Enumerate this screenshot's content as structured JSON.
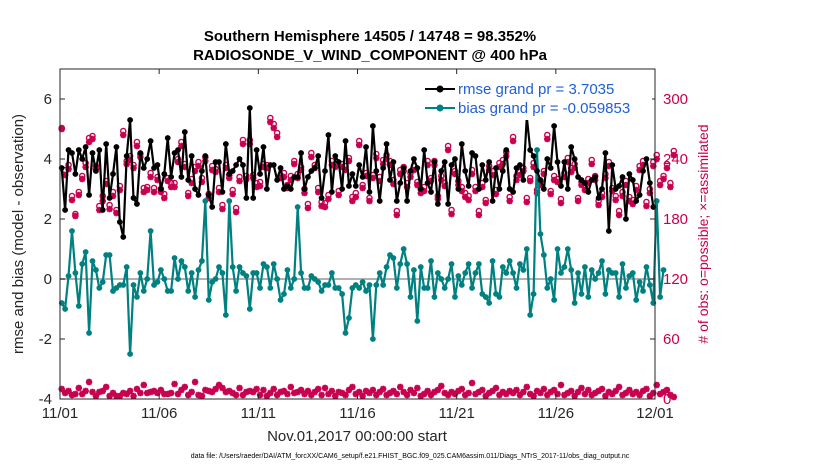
{
  "chart_data": {
    "type": "line",
    "title_line1": "Southern Hemisphere 14505 / 14748 = 98.352%",
    "title_line2": "RADIOSONDE_V_WIND_COMPONENT @ 400 hPa",
    "xlabel": "Nov.01,2017 00:00:00 start",
    "ylabel": "rmse and bias (model - observation)",
    "ylabel_right": "# of obs: o=possible; ×=assimilated",
    "x_ticks": [
      "11/01",
      "11/06",
      "11/11",
      "11/16",
      "11/21",
      "11/26",
      "12/01"
    ],
    "x_range_days": [
      0,
      30
    ],
    "ylim": [
      -4,
      7
    ],
    "y_ticks": [
      -4,
      -2,
      0,
      2,
      4,
      6
    ],
    "ylim_right": [
      0,
      330
    ],
    "y_ticks_right": [
      0,
      60,
      120,
      180,
      240,
      300
    ],
    "footer": "data file: /Users/raeder/DAI/ATM_forcXX/CAM6_setup/f.e21.FHIST_BGC.f09_025.CAM6assim.011/Diags_NTrS_2017-11/obs_diag_output.nc",
    "colors": {
      "rmse": "#000000",
      "bias": "#008080",
      "obs": "#c8004f",
      "legend_text": "#1f5fd6"
    },
    "series": [
      {
        "name": "rmse",
        "legend": "rmse grand pr = 3.7035",
        "values": [
          3.7,
          2.3,
          4.3,
          4.2,
          3.5,
          4.3,
          4.0,
          4.4,
          2.8,
          4.2,
          3.6,
          4.3,
          2.3,
          4.5,
          2.7,
          3.5,
          4.4,
          1.9,
          1.4,
          4.1,
          5.3,
          2.7,
          2.5,
          4.2,
          3.7,
          4.0,
          4.6,
          3.7,
          3.8,
          3.0,
          3.5,
          4.7,
          3.4,
          4.2,
          4.3,
          3.4,
          4.9,
          3.3,
          4.1,
          3.0,
          2.8,
          3.6,
          4.1,
          2.8,
          2.4,
          3.9,
          3.9,
          2.9,
          4.5,
          3.5,
          3.6,
          3.8,
          4.0,
          3.8,
          2.7,
          5.7,
          2.7,
          4.3,
          3.5,
          4.4,
          3.0,
          3.8,
          3.8,
          3.3,
          3.7,
          3.0,
          3.1,
          3.0,
          3.4,
          3.4,
          4.2,
          3.0,
          3.4,
          3.6,
          3.7,
          4.1,
          2.7,
          3.6,
          4.8,
          2.9,
          4.1,
          3.9,
          3.0,
          4.6,
          3.1,
          3.5,
          3.1,
          3.8,
          3.4,
          4.4,
          2.9,
          5.1,
          3.6,
          2.6,
          3.7,
          4.5,
          3.3,
          3.9,
          2.6,
          3.2,
          3.7,
          2.6,
          3.6,
          4.0,
          3.7,
          3.0,
          4.3,
          3.2,
          2.9,
          3.9,
          2.5,
          3.6,
          3.9,
          2.5,
          3.8,
          4.0,
          3.0,
          4.5,
          3.6,
          3.1,
          4.2,
          4.1,
          3.0,
          3.8,
          3.3,
          3.9,
          2.6,
          3.7,
          3.0,
          3.6,
          4.3,
          3.0,
          2.9,
          3.7,
          3.8,
          3.3,
          5.4,
          4.3,
          4.1,
          3.6,
          3.3,
          3.0,
          4.0,
          3.7,
          5.1,
          3.9,
          3.1,
          3.9,
          3.0,
          4.4,
          4.0,
          3.4,
          3.3,
          3.2,
          2.9,
          3.3,
          3.4,
          2.7,
          3.0,
          4.2,
          1.6,
          3.8,
          3.0,
          3.1,
          3.4,
          2.0,
          3.5,
          3.3,
          2.6,
          2.8,
          3.6,
          4.0,
          3.2,
          2.4
        ]
      },
      {
        "name": "bias",
        "legend": "bias grand pr = -0.059853",
        "values": [
          -0.8,
          -1.0,
          0.1,
          1.6,
          0.2,
          -0.9,
          0.5,
          0.9,
          -1.8,
          0.6,
          0.3,
          -0.3,
          -0.1,
          0.8,
          0.8,
          -0.4,
          -0.3,
          -0.2,
          -0.2,
          0.4,
          -2.5,
          -0.2,
          -0.6,
          0.2,
          -0.4,
          0.0,
          1.6,
          -0.2,
          -0.1,
          0.3,
          0.0,
          -0.4,
          -0.4,
          0.7,
          0.0,
          0.6,
          0.4,
          -0.4,
          0.2,
          -0.6,
          0.3,
          0.6,
          2.6,
          -0.7,
          -0.1,
          0.0,
          0.4,
          0.2,
          -1.2,
          2.6,
          0.4,
          -0.4,
          0.4,
          0.2,
          0.1,
          -1.0,
          0.2,
          0.2,
          -0.3,
          0.5,
          0.4,
          -0.3,
          0.5,
          0.0,
          -0.7,
          -0.5,
          0.3,
          -0.3,
          0.0,
          2.4,
          0.2,
          -0.3,
          -0.3,
          0.1,
          0.0,
          -0.1,
          -0.4,
          -0.2,
          -0.2,
          0.2,
          -0.3,
          -0.3,
          -0.5,
          -1.8,
          -1.3,
          -0.3,
          -0.2,
          -0.3,
          -0.1,
          -0.4,
          -0.2,
          -2.0,
          -0.2,
          0.2,
          -0.2,
          0.4,
          0.8,
          0.7,
          -0.3,
          0.5,
          1.0,
          0.5,
          -0.6,
          0.3,
          -1.4,
          0.4,
          -0.3,
          -0.3,
          0.6,
          -0.6,
          0.2,
          0.0,
          -0.3,
          0.0,
          0.5,
          -0.6,
          0.1,
          -0.2,
          0.2,
          0.5,
          -0.3,
          0.2,
          0.5,
          -0.5,
          -0.6,
          -0.8,
          0.6,
          -0.5,
          -0.6,
          0.4,
          0.2,
          0.6,
          0.2,
          -0.3,
          0.5,
          0.3,
          1.0,
          -1.2,
          -0.5,
          4.3,
          1.5,
          0.8,
          -0.3,
          0.0,
          -0.7,
          1.0,
          0.2,
          0.4,
          1.0,
          0.3,
          -0.8,
          0.2,
          -0.5,
          0.4,
          -0.6,
          0.3,
          0.0,
          0.2,
          0.6,
          -0.5,
          0.3,
          0.2,
          0.2,
          -0.6,
          0.5,
          -0.3,
          0.1,
          0.2,
          -0.7,
          -0.1,
          -0.4,
          0.4,
          -0.2,
          -0.8,
          2.6,
          -0.6,
          0.3
        ]
      },
      {
        "name": "obs_possible",
        "values": [
          271,
          229,
          234,
          203,
          185,
          207,
          223,
          236,
          261,
          263,
          233,
          193,
          203,
          218,
          194,
          207,
          189,
          213,
          268,
          238,
          243,
          234,
          257,
          245,
          211,
          212,
          226,
          211,
          222,
          210,
          205,
          221,
          216,
          216,
          240,
          257,
          235,
          206,
          220,
          232,
          237,
          221,
          242,
          205,
          233,
          230,
          211,
          194,
          234,
          224,
          209,
          191,
          222,
          259,
          223,
          259,
          224,
          216,
          217,
          235,
          234,
          281,
          275,
          266,
          224,
          226,
          214,
          223,
          238,
          225,
          232,
          210,
          195,
          246,
          234,
          211,
          197,
          196,
          204,
          238,
          235,
          208,
          235,
          233,
          241,
          202,
          206,
          258,
          214,
          226,
          201,
          224,
          245,
          222,
          239,
          244,
          238,
          219,
          188,
          229,
          232,
          216,
          226,
          233,
          217,
          210,
          212,
          238,
          221,
          238,
          203,
          223,
          216,
          253,
          189,
          228,
          218,
          212,
          206,
          203,
          229,
          212,
          188,
          216,
          199,
          233,
          228,
          209,
          236,
          239,
          247,
          202,
          262,
          223,
          227,
          231,
          201,
          221,
          236,
          209,
          218,
          228,
          264,
          208,
          223,
          220,
          200,
          226,
          241,
          231,
          235,
          201,
          217,
          213,
          220,
          239,
          223,
          198,
          206,
          225,
          237,
          211,
          203,
          188,
          207,
          218,
          202,
          199,
          213,
          233,
          238,
          197,
          210,
          237,
          244,
          218,
          223,
          235,
          216,
          248
        ]
      },
      {
        "name": "obs_assimilated",
        "values": [
          270,
          224,
          230,
          199,
          183,
          204,
          220,
          232,
          257,
          260,
          230,
          189,
          198,
          215,
          190,
          203,
          186,
          209,
          264,
          235,
          239,
          231,
          253,
          242,
          207,
          209,
          222,
          207,
          219,
          207,
          201,
          218,
          212,
          212,
          237,
          253,
          232,
          203,
          216,
          228,
          233,
          217,
          238,
          201,
          229,
          227,
          207,
          190,
          231,
          221,
          205,
          187,
          218,
          255,
          220,
          255,
          221,
          212,
          213,
          232,
          231,
          277,
          271,
          262,
          221,
          222,
          211,
          219,
          235,
          221,
          229,
          206,
          191,
          242,
          231,
          207,
          193,
          192,
          200,
          234,
          232,
          204,
          232,
          229,
          238,
          198,
          202,
          254,
          211,
          223,
          198,
          221,
          241,
          218,
          235,
          240,
          234,
          215,
          184,
          225,
          228,
          212,
          222,
          229,
          214,
          206,
          208,
          234,
          218,
          234,
          200,
          219,
          213,
          249,
          185,
          225,
          214,
          208,
          202,
          199,
          225,
          208,
          184,
          212,
          196,
          229,
          224,
          205,
          232,
          235,
          243,
          198,
          258,
          219,
          224,
          228,
          197,
          218,
          232,
          206,
          214,
          225,
          260,
          205,
          219,
          217,
          196,
          222,
          237,
          227,
          231,
          198,
          214,
          209,
          216,
          235,
          219,
          194,
          202,
          221,
          233,
          208,
          199,
          184,
          203,
          214,
          198,
          195,
          209,
          229,
          234,
          193,
          206,
          233,
          240,
          214,
          220,
          231,
          212,
          244
        ]
      },
      {
        "name": "obs_rejected",
        "values": [
          10,
          6,
          8,
          4,
          5,
          11,
          5,
          8,
          17,
          7,
          3,
          7,
          8,
          12,
          3,
          6,
          3,
          3,
          6,
          5,
          8,
          3,
          10,
          6,
          14,
          6,
          7,
          8,
          6,
          9,
          5,
          5,
          6,
          15,
          5,
          9,
          12,
          4,
          7,
          17,
          4,
          3,
          9,
          8,
          7,
          10,
          14,
          11,
          7,
          8,
          6,
          4,
          11,
          4,
          7,
          8,
          7,
          10,
          4,
          9,
          3,
          6,
          10,
          4,
          7,
          8,
          5,
          12,
          6,
          7,
          9,
          5,
          8,
          4,
          7,
          10,
          4,
          11,
          5,
          8,
          3,
          7,
          6,
          4,
          9,
          12,
          5,
          7,
          3,
          8,
          6,
          9,
          4,
          7,
          10,
          4,
          6,
          8,
          5,
          12,
          7,
          4,
          9,
          6,
          11,
          3,
          5,
          8,
          4,
          7,
          9,
          13,
          6,
          4,
          7,
          5,
          8,
          10,
          4,
          6,
          16,
          5,
          7,
          9,
          3,
          6,
          8,
          11,
          4,
          7,
          5,
          8,
          6,
          9,
          4,
          7,
          12,
          5,
          3,
          8,
          6,
          10,
          4,
          7,
          9,
          5,
          14,
          4,
          6,
          8,
          3,
          7,
          11,
          5,
          9,
          4,
          6,
          8,
          10,
          3,
          7,
          5,
          8,
          12,
          4,
          6,
          9,
          5,
          7,
          4,
          8,
          10,
          3,
          6,
          14,
          5,
          7,
          9,
          4,
          2
        ]
      }
    ]
  }
}
